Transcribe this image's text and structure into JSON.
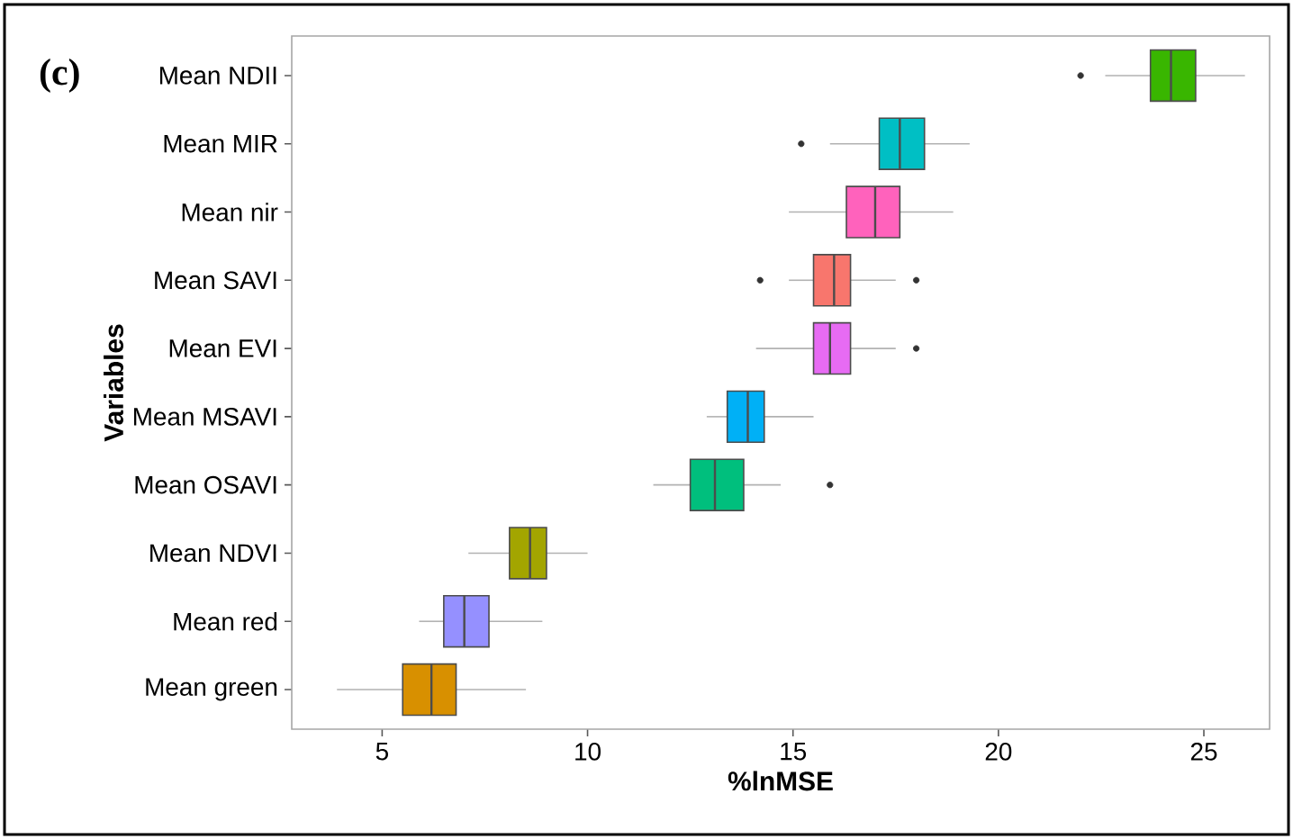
{
  "chart_data": {
    "type": "box",
    "orientation": "horizontal",
    "xlabel": "%lnMSE",
    "ylabel": "Variables",
    "annotations": [
      "(c)"
    ],
    "categories": [
      "Mean NDII",
      "Mean MIR",
      "Mean nir",
      "Mean SAVI",
      "Mean EVI",
      "Mean MSAVI",
      "Mean OSAVI",
      "Mean NDVI",
      "Mean red",
      "Mean green"
    ],
    "colors": [
      "#39b600",
      "#00bfc4",
      "#ff62bc",
      "#f8766d",
      "#e76bf3",
      "#00b0f6",
      "#00bf7d",
      "#a3a500",
      "#9590ff",
      "#d89000"
    ],
    "boxes": [
      {
        "low": 22.6,
        "q1": 23.7,
        "median": 24.2,
        "q3": 24.8,
        "high": 26.0,
        "outliers": [
          22.0
        ]
      },
      {
        "low": 15.9,
        "q1": 17.1,
        "median": 17.6,
        "q3": 18.2,
        "high": 19.3,
        "outliers": [
          15.2
        ]
      },
      {
        "low": 14.9,
        "q1": 16.3,
        "median": 17.0,
        "q3": 17.6,
        "high": 18.9
      },
      {
        "low": 14.9,
        "q1": 15.5,
        "median": 16.0,
        "q3": 16.4,
        "high": 17.5,
        "outliers": [
          14.2,
          18.0
        ]
      },
      {
        "low": 14.1,
        "q1": 15.5,
        "median": 15.9,
        "q3": 16.4,
        "high": 17.5,
        "outliers": [
          18.0
        ]
      },
      {
        "low": 12.9,
        "q1": 13.4,
        "median": 13.9,
        "q3": 14.3,
        "high": 15.5
      },
      {
        "low": 11.6,
        "q1": 12.5,
        "median": 13.1,
        "q3": 13.8,
        "high": 14.7,
        "outliers": [
          15.9
        ]
      },
      {
        "low": 7.1,
        "q1": 8.1,
        "median": 8.6,
        "q3": 9.0,
        "high": 10.0
      },
      {
        "low": 5.9,
        "q1": 6.5,
        "median": 7.0,
        "q3": 7.6,
        "high": 8.9
      },
      {
        "low": 3.9,
        "q1": 5.5,
        "median": 6.2,
        "q3": 6.8,
        "high": 8.5
      }
    ],
    "xlim": [
      2.8,
      26.6
    ],
    "xticks": [
      5,
      10,
      15,
      20,
      25
    ],
    "grid": false
  }
}
